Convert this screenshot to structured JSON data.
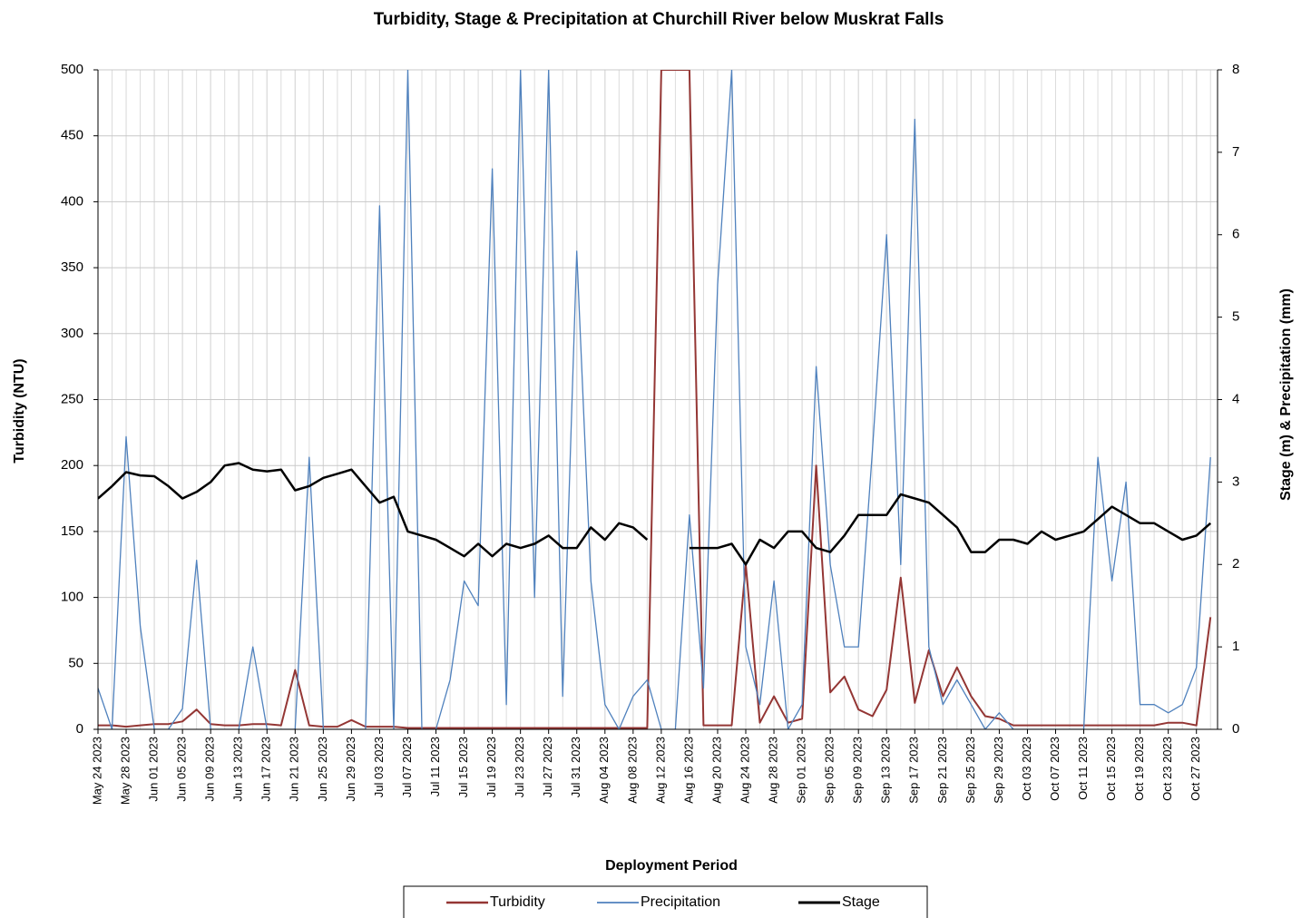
{
  "chart_data": {
    "type": "line",
    "title": "Turbidity, Stage & Precipitation at Churchill River below Muskrat Falls",
    "x_label": "Deployment Period",
    "y_label": "Turbidity (NTU)",
    "y2_label": "Stage (m) & Precipitation (mm)",
    "x": [
      "May 24 2023",
      "May 26 2023",
      "May 28 2023",
      "May 30 2023",
      "Jun 01 2023",
      "Jun 03 2023",
      "Jun 05 2023",
      "Jun 07 2023",
      "Jun 09 2023",
      "Jun 11 2023",
      "Jun 13 2023",
      "Jun 15 2023",
      "Jun 17 2023",
      "Jun 19 2023",
      "Jun 21 2023",
      "Jun 23 2023",
      "Jun 25 2023",
      "Jun 27 2023",
      "Jun 29 2023",
      "Jul 01 2023",
      "Jul 03 2023",
      "Jul 05 2023",
      "Jul 07 2023",
      "Jul 09 2023",
      "Jul 11 2023",
      "Jul 13 2023",
      "Jul 15 2023",
      "Jul 17 2023",
      "Jul 19 2023",
      "Jul 21 2023",
      "Jul 23 2023",
      "Jul 25 2023",
      "Jul 27 2023",
      "Jul 29 2023",
      "Jul 31 2023",
      "Aug 02 2023",
      "Aug 04 2023",
      "Aug 06 2023",
      "Aug 08 2023",
      "Aug 10 2023",
      "Aug 12 2023",
      "Aug 14 2023",
      "Aug 16 2023",
      "Aug 18 2023",
      "Aug 20 2023",
      "Aug 22 2023",
      "Aug 24 2023",
      "Aug 26 2023",
      "Aug 28 2023",
      "Aug 30 2023",
      "Sep 01 2023",
      "Sep 03 2023",
      "Sep 05 2023",
      "Sep 07 2023",
      "Sep 09 2023",
      "Sep 11 2023",
      "Sep 13 2023",
      "Sep 15 2023",
      "Sep 17 2023",
      "Sep 19 2023",
      "Sep 21 2023",
      "Sep 23 2023",
      "Sep 25 2023",
      "Sep 27 2023",
      "Sep 29 2023",
      "Oct 01 2023",
      "Oct 03 2023",
      "Oct 05 2023",
      "Oct 07 2023",
      "Oct 09 2023",
      "Oct 11 2023",
      "Oct 13 2023",
      "Oct 15 2023",
      "Oct 17 2023",
      "Oct 19 2023",
      "Oct 21 2023",
      "Oct 23 2023",
      "Oct 25 2023",
      "Oct 27 2023",
      "Oct 29 2023"
    ],
    "xlim": [
      "May 24 2023",
      "Oct 30 2023"
    ],
    "xticks": [
      "May 24 2023",
      "May 28 2023",
      "Jun 01 2023",
      "Jun 05 2023",
      "Jun 09 2023",
      "Jun 13 2023",
      "Jun 17 2023",
      "Jun 21 2023",
      "Jun 25 2023",
      "Jun 29 2023",
      "Jul 03 2023",
      "Jul 07 2023",
      "Jul 11 2023",
      "Jul 15 2023",
      "Jul 19 2023",
      "Jul 23 2023",
      "Jul 27 2023",
      "Jul 31 2023",
      "Aug 04 2023",
      "Aug 08 2023",
      "Aug 12 2023",
      "Aug 16 2023",
      "Aug 20 2023",
      "Aug 24 2023",
      "Aug 28 2023",
      "Sep 01 2023",
      "Sep 05 2023",
      "Sep 09 2023",
      "Sep 13 2023",
      "Sep 17 2023",
      "Sep 21 2023",
      "Sep 25 2023",
      "Sep 29 2023",
      "Oct 03 2023",
      "Oct 07 2023",
      "Oct 11 2023",
      "Oct 15 2023",
      "Oct 19 2023",
      "Oct 23 2023",
      "Oct 27 2023"
    ],
    "ylim": [
      0,
      500
    ],
    "yticks": [
      0,
      50,
      100,
      150,
      200,
      250,
      300,
      350,
      400,
      450,
      500
    ],
    "y2lim": [
      0,
      8
    ],
    "y2ticks": [
      0,
      1,
      2,
      3,
      4,
      5,
      6,
      7,
      8
    ],
    "grid": true,
    "legend": "bottom",
    "series": [
      {
        "name": "Turbidity",
        "color": "#943634",
        "width": 2,
        "values": [
          3,
          3,
          2,
          3,
          4,
          4,
          6,
          15,
          4,
          3,
          3,
          4,
          4,
          3,
          45,
          3,
          2,
          2,
          7,
          2,
          2,
          2,
          1,
          1,
          1,
          1,
          1,
          1,
          1,
          1,
          1,
          1,
          1,
          1,
          1,
          1,
          1,
          1,
          1,
          1,
          500,
          500,
          500,
          3,
          3,
          3,
          125,
          5,
          25,
          5,
          8,
          200,
          28,
          40,
          15,
          10,
          30,
          115,
          20,
          60,
          25,
          47,
          25,
          10,
          8,
          3,
          3,
          3,
          3,
          3,
          3,
          3,
          3,
          3,
          3,
          3,
          5,
          5,
          3,
          85
        ]
      },
      {
        "name": "Precipitation",
        "color": "#4f81bd",
        "width": 1.3,
        "axis": "y2",
        "values": [
          0.5,
          0,
          3.55,
          1.25,
          0,
          0,
          0.25,
          2.05,
          0,
          0,
          0,
          1.0,
          0,
          0,
          0,
          3.3,
          0,
          0,
          0,
          0,
          6.35,
          0,
          8,
          0,
          0,
          0.6,
          1.8,
          1.5,
          6.8,
          0.3,
          8,
          1.6,
          8,
          0.4,
          5.8,
          1.8,
          0.3,
          0,
          0.4,
          0.6,
          0,
          0,
          2.6,
          0.5,
          5.4,
          8,
          1.0,
          0.3,
          1.8,
          0,
          0.3,
          4.4,
          2.0,
          1.0,
          1.0,
          3.4,
          6.0,
          2.0,
          7.4,
          1.0,
          0.3,
          0.6,
          0.3,
          0,
          0.2,
          0,
          0,
          0,
          0,
          0,
          0,
          3.3,
          1.8,
          3.0,
          0.3,
          0.3,
          0.2,
          0.3,
          0.75,
          3.3
        ]
      },
      {
        "name": "Stage",
        "color": "#000000",
        "width": 2.5,
        "axis": "y2",
        "values": [
          2.8,
          2.95,
          3.12,
          3.08,
          3.07,
          2.95,
          2.8,
          2.88,
          3.0,
          3.2,
          3.23,
          3.15,
          3.13,
          3.15,
          2.9,
          2.95,
          3.05,
          3.1,
          3.15,
          2.95,
          2.75,
          2.82,
          2.4,
          2.35,
          2.3,
          2.2,
          2.1,
          2.25,
          2.1,
          2.25,
          2.2,
          2.25,
          2.35,
          2.2,
          2.2,
          2.45,
          2.3,
          2.5,
          2.45,
          2.3,
          null,
          null,
          2.2,
          2.2,
          2.2,
          2.25,
          2.0,
          2.3,
          2.2,
          2.4,
          2.4,
          2.2,
          2.15,
          2.35,
          2.6,
          2.6,
          2.6,
          2.85,
          2.8,
          2.75,
          2.6,
          2.45,
          2.15,
          2.15,
          2.3,
          2.3,
          2.25,
          2.4,
          2.3,
          2.35,
          2.4,
          2.55,
          2.7,
          2.6,
          2.5,
          2.5,
          2.4,
          2.3,
          2.35,
          2.5
        ]
      }
    ]
  }
}
